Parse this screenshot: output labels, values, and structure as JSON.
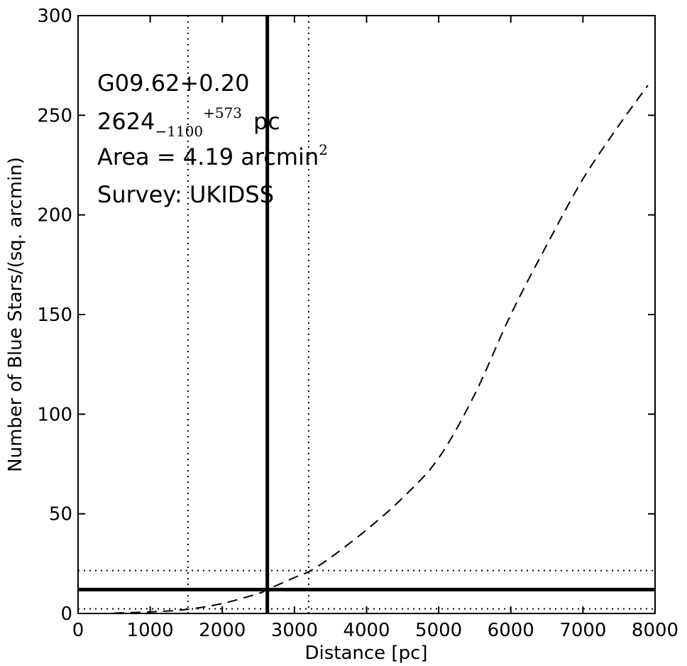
{
  "chart_data": {
    "type": "line",
    "title": "",
    "xlabel": "Distance [pc]",
    "ylabel": "Number of Blue Stars/(sq. arcmin)",
    "xlim": [
      0,
      8000
    ],
    "ylim": [
      0,
      300
    ],
    "x_ticks": [
      0,
      1000,
      2000,
      3000,
      4000,
      5000,
      6000,
      7000,
      8000
    ],
    "y_ticks": [
      0,
      50,
      100,
      150,
      200,
      250,
      300
    ],
    "x_tick_labels": [
      "0",
      "1000",
      "2000",
      "3000",
      "4000",
      "5000",
      "6000",
      "7000",
      "8000"
    ],
    "y_tick_labels": [
      "0",
      "50",
      "100",
      "150",
      "200",
      "250",
      "300"
    ],
    "grid": false,
    "series": [
      {
        "style": "dashed",
        "color": "#000000",
        "x": [
          500,
          1000,
          1500,
          2000,
          2500,
          2624,
          3000,
          3200,
          3500,
          4000,
          4500,
          5000,
          5500,
          6000,
          6500,
          7000,
          7500,
          7900
        ],
        "y": [
          0.2,
          0.8,
          2,
          5,
          10,
          12,
          18,
          21,
          28,
          42,
          58,
          78,
          110,
          150,
          185,
          218,
          245,
          265
        ]
      }
    ],
    "vertical_lines": [
      {
        "x": 2624,
        "style": "solid"
      },
      {
        "x": 1524,
        "style": "dotted"
      },
      {
        "x": 3197,
        "style": "dotted"
      }
    ],
    "horizontal_lines": [
      {
        "y": 12,
        "style": "solid"
      },
      {
        "y": 2.3,
        "style": "dotted"
      },
      {
        "y": 21.5,
        "style": "dotted"
      }
    ],
    "annotations": {
      "source": "G09.62+0.20",
      "distance_value": "2624",
      "distance_sub": "−1100",
      "distance_sup": "+573",
      "distance_unit": "pc",
      "area_text": "Area = 4.19 arcmin",
      "area_sup": "2",
      "survey": "Survey: UKIDSS"
    }
  }
}
